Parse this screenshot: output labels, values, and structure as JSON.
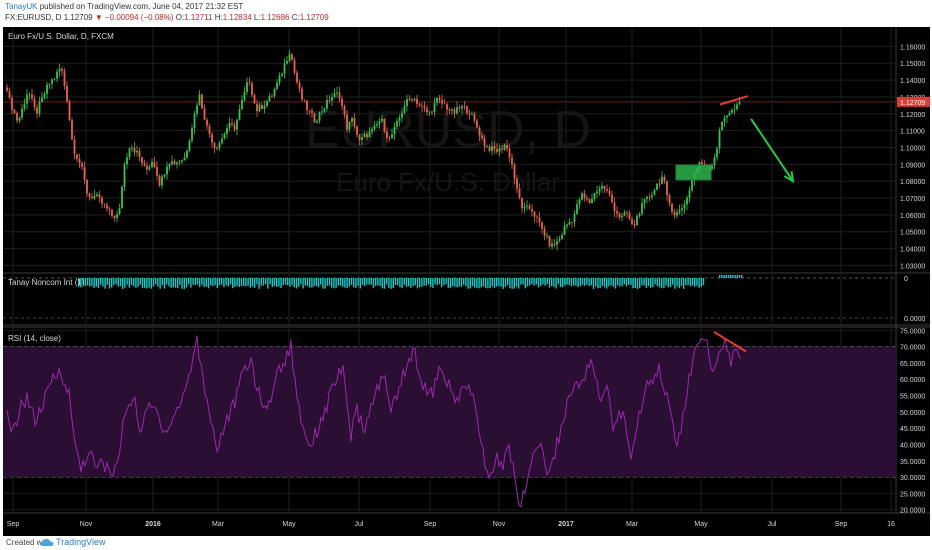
{
  "header": {
    "user": "TanayUK",
    "published": "published on TradingView.com, June 04, 2017 21:32 EST",
    "symbol_line": "FX:EURUSD, D",
    "last": "1.12709",
    "change": "▼ −0.00094 (−0.08%)",
    "ohlc": {
      "o_label": "O:",
      "o": "1.12711",
      "h_label": "H:",
      "h": "1.12834",
      "l_label": "L:",
      "l": "1.12686",
      "c_label": "C:",
      "c": "1.12709"
    }
  },
  "panes": {
    "price_title": "Euro Fx/U.S. Dollar, D, FXCM",
    "watermark_symbol": "EURUSD, D",
    "watermark_name": "Euro Fx/U.S. Dollar",
    "indicator_title": "Tanay Noncom Int (1)",
    "rsi_title": "RSI (14, close)"
  },
  "chart_data": {
    "type": "candlestick",
    "price_axis": {
      "ticks": [
        "1.16000",
        "1.15000",
        "1.14000",
        "1.13000",
        "1.12000",
        "1.11000",
        "1.10000",
        "1.09000",
        "1.08000",
        "1.07000",
        "1.06000",
        "1.05000",
        "1.04000",
        "1.03000"
      ],
      "range": [
        1.0255,
        1.1715
      ]
    },
    "last_price_label": "1.12709",
    "last_price": 1.12709,
    "indicator_axis": {
      "ticks": [
        "0",
        "0.0000"
      ]
    },
    "rsi_axis": {
      "ticks": [
        "75.0000",
        "70.0000",
        "65.0000",
        "60.0000",
        "55.0000",
        "50.0000",
        "45.0000",
        "40.0000",
        "35.0000",
        "30.0000",
        "25.0000",
        "20.0000"
      ],
      "range": [
        19,
        76
      ],
      "overbought": 70,
      "oversold": 30
    },
    "time_axis": {
      "ticks": [
        "Sep",
        "Nov",
        "2016",
        "Mar",
        "May",
        "Jul",
        "Sep",
        "Nov",
        "2017",
        "Mar",
        "May",
        "Jul",
        "Sep",
        "16"
      ],
      "bold": [
        "2016",
        "2017"
      ]
    },
    "price_path": [
      [
        0,
        1.158
      ],
      [
        5,
        1.13
      ],
      [
        15,
        1.115
      ],
      [
        25,
        1.134
      ],
      [
        33,
        1.12
      ],
      [
        45,
        1.137
      ],
      [
        52,
        1.142
      ],
      [
        58,
        1.148
      ],
      [
        64,
        1.129
      ],
      [
        70,
        1.1
      ],
      [
        78,
        1.089
      ],
      [
        85,
        1.071
      ],
      [
        93,
        1.071
      ],
      [
        103,
        1.064
      ],
      [
        110,
        1.059
      ],
      [
        116,
        1.06
      ],
      [
        121,
        1.089
      ],
      [
        127,
        1.102
      ],
      [
        135,
        1.096
      ],
      [
        143,
        1.086
      ],
      [
        150,
        1.093
      ],
      [
        157,
        1.078
      ],
      [
        165,
        1.092
      ],
      [
        172,
        1.091
      ],
      [
        182,
        1.094
      ],
      [
        188,
        1.11
      ],
      [
        196,
        1.132
      ],
      [
        204,
        1.112
      ],
      [
        212,
        1.1
      ],
      [
        218,
        1.104
      ],
      [
        225,
        1.113
      ],
      [
        232,
        1.112
      ],
      [
        238,
        1.125
      ],
      [
        246,
        1.141
      ],
      [
        253,
        1.122
      ],
      [
        260,
        1.125
      ],
      [
        268,
        1.13
      ],
      [
        276,
        1.14
      ],
      [
        282,
        1.15
      ],
      [
        287,
        1.158
      ],
      [
        292,
        1.143
      ],
      [
        298,
        1.13
      ],
      [
        304,
        1.123
      ],
      [
        312,
        1.116
      ],
      [
        320,
        1.123
      ],
      [
        328,
        1.13
      ],
      [
        336,
        1.132
      ],
      [
        344,
        1.112
      ],
      [
        350,
        1.117
      ],
      [
        356,
        1.103
      ],
      [
        362,
        1.107
      ],
      [
        370,
        1.11
      ],
      [
        378,
        1.117
      ],
      [
        386,
        1.104
      ],
      [
        394,
        1.114
      ],
      [
        402,
        1.126
      ],
      [
        410,
        1.13
      ],
      [
        418,
        1.124
      ],
      [
        426,
        1.12
      ],
      [
        434,
        1.128
      ],
      [
        442,
        1.125
      ],
      [
        450,
        1.12
      ],
      [
        458,
        1.124
      ],
      [
        466,
        1.122
      ],
      [
        474,
        1.112
      ],
      [
        482,
        1.101
      ],
      [
        488,
        1.099
      ],
      [
        496,
        1.098
      ],
      [
        502,
        1.102
      ],
      [
        508,
        1.093
      ],
      [
        514,
        1.074
      ],
      [
        520,
        1.063
      ],
      [
        528,
        1.064
      ],
      [
        536,
        1.055
      ],
      [
        542,
        1.048
      ],
      [
        548,
        1.041
      ],
      [
        556,
        1.045
      ],
      [
        562,
        1.053
      ],
      [
        570,
        1.058
      ],
      [
        578,
        1.072
      ],
      [
        586,
        1.067
      ],
      [
        594,
        1.075
      ],
      [
        600,
        1.077
      ],
      [
        606,
        1.072
      ],
      [
        612,
        1.063
      ],
      [
        618,
        1.058
      ],
      [
        624,
        1.061
      ],
      [
        630,
        1.052
      ],
      [
        636,
        1.062
      ],
      [
        642,
        1.068
      ],
      [
        648,
        1.072
      ],
      [
        654,
        1.078
      ],
      [
        660,
        1.083
      ],
      [
        664,
        1.07
      ],
      [
        668,
        1.065
      ],
      [
        672,
        1.06
      ],
      [
        678,
        1.063
      ],
      [
        684,
        1.07
      ],
      [
        690,
        1.083
      ],
      [
        696,
        1.09
      ],
      [
        702,
        1.091
      ],
      [
        708,
        1.088
      ],
      [
        714,
        1.1
      ],
      [
        718,
        1.114
      ],
      [
        722,
        1.119
      ],
      [
        726,
        1.121
      ],
      [
        730,
        1.122
      ],
      [
        734,
        1.124
      ],
      [
        738,
        1.127
      ]
    ],
    "rsi_path": [
      [
        0,
        56
      ],
      [
        8,
        42
      ],
      [
        16,
        50
      ],
      [
        24,
        55
      ],
      [
        32,
        47
      ],
      [
        40,
        52
      ],
      [
        50,
        60
      ],
      [
        58,
        63
      ],
      [
        66,
        55
      ],
      [
        72,
        40
      ],
      [
        78,
        33
      ],
      [
        86,
        38
      ],
      [
        94,
        32
      ],
      [
        100,
        35
      ],
      [
        108,
        30
      ],
      [
        116,
        36
      ],
      [
        122,
        50
      ],
      [
        130,
        55
      ],
      [
        138,
        44
      ],
      [
        146,
        52
      ],
      [
        154,
        50
      ],
      [
        162,
        44
      ],
      [
        170,
        48
      ],
      [
        178,
        53
      ],
      [
        186,
        61
      ],
      [
        194,
        72
      ],
      [
        200,
        60
      ],
      [
        208,
        48
      ],
      [
        214,
        38
      ],
      [
        220,
        45
      ],
      [
        228,
        50
      ],
      [
        234,
        55
      ],
      [
        240,
        62
      ],
      [
        248,
        66
      ],
      [
        256,
        55
      ],
      [
        264,
        50
      ],
      [
        272,
        60
      ],
      [
        280,
        65
      ],
      [
        288,
        70
      ],
      [
        294,
        55
      ],
      [
        300,
        45
      ],
      [
        308,
        40
      ],
      [
        316,
        46
      ],
      [
        324,
        52
      ],
      [
        332,
        60
      ],
      [
        340,
        62
      ],
      [
        348,
        43
      ],
      [
        354,
        50
      ],
      [
        360,
        45
      ],
      [
        366,
        48
      ],
      [
        372,
        55
      ],
      [
        380,
        62
      ],
      [
        388,
        50
      ],
      [
        396,
        58
      ],
      [
        404,
        65
      ],
      [
        412,
        68
      ],
      [
        420,
        58
      ],
      [
        428,
        55
      ],
      [
        436,
        62
      ],
      [
        444,
        60
      ],
      [
        452,
        52
      ],
      [
        460,
        58
      ],
      [
        468,
        56
      ],
      [
        476,
        45
      ],
      [
        482,
        33
      ],
      [
        488,
        30
      ],
      [
        494,
        36
      ],
      [
        500,
        32
      ],
      [
        506,
        42
      ],
      [
        512,
        27
      ],
      [
        518,
        22
      ],
      [
        524,
        28
      ],
      [
        530,
        38
      ],
      [
        538,
        40
      ],
      [
        546,
        30
      ],
      [
        552,
        38
      ],
      [
        558,
        45
      ],
      [
        566,
        55
      ],
      [
        574,
        58
      ],
      [
        582,
        62
      ],
      [
        590,
        65
      ],
      [
        598,
        52
      ],
      [
        604,
        58
      ],
      [
        610,
        45
      ],
      [
        616,
        50
      ],
      [
        622,
        47
      ],
      [
        628,
        37
      ],
      [
        634,
        45
      ],
      [
        640,
        55
      ],
      [
        648,
        60
      ],
      [
        656,
        64
      ],
      [
        662,
        57
      ],
      [
        668,
        48
      ],
      [
        674,
        40
      ],
      [
        680,
        48
      ],
      [
        686,
        60
      ],
      [
        692,
        68
      ],
      [
        698,
        72
      ],
      [
        704,
        70
      ],
      [
        710,
        62
      ],
      [
        716,
        70
      ],
      [
        722,
        71
      ],
      [
        728,
        66
      ],
      [
        734,
        68
      ],
      [
        738,
        66
      ]
    ],
    "annotations": [
      {
        "type": "trendline",
        "pane": "price",
        "color": "#e53935",
        "from": [
          717,
          1.1255
        ],
        "to": [
          745,
          1.1305
        ]
      },
      {
        "type": "arrow",
        "pane": "price",
        "color": "#27c93f",
        "from": [
          748,
          1.117
        ],
        "to": [
          790,
          1.08
        ]
      },
      {
        "type": "rectangle",
        "pane": "price",
        "color": "#2db34a",
        "x0": 673,
        "x1": 708,
        "p0": 1.0895,
        "p1": 1.0808
      },
      {
        "type": "trendline",
        "pane": "rsi",
        "color": "#e53935",
        "from": [
          711,
          74.5
        ],
        "to": [
          743,
          68.5
        ]
      }
    ]
  },
  "colors": {
    "bull": "#39c44f",
    "bear": "#e8624b",
    "rsi_line": "#9c27b0",
    "rsi_band": "#2b0f33",
    "indicator": "#1ec8c8",
    "last_price": "#e53935",
    "grid": "#1f1f1f",
    "axis_text": "#d6d6d6"
  },
  "footer": {
    "created_with": "Created with",
    "brand": "TradingView"
  }
}
